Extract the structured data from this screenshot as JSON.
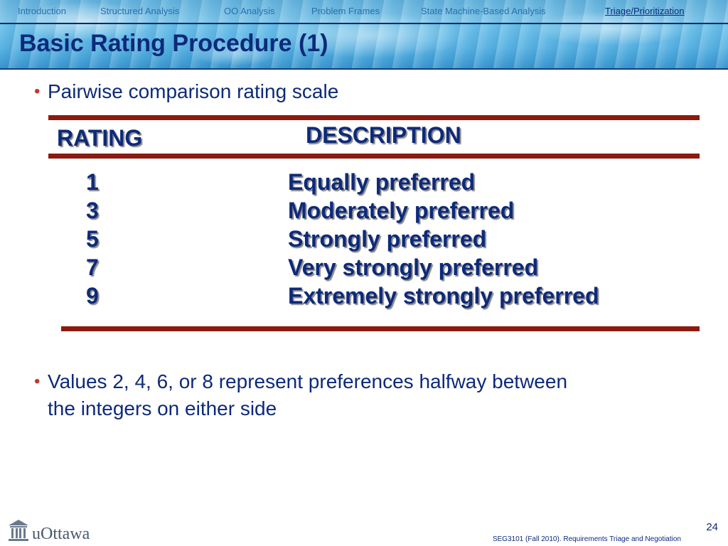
{
  "nav": {
    "items": [
      {
        "label": "Introduction",
        "active": false
      },
      {
        "label": "Structured Analysis",
        "active": false
      },
      {
        "label": "OO Analysis",
        "active": false
      },
      {
        "label": "Problem Frames",
        "active": false
      },
      {
        "label": "State Machine-Based Analysis",
        "active": false
      },
      {
        "label": "Triage/Prioritization",
        "active": true
      }
    ]
  },
  "slide": {
    "title": "Basic Rating Procedure (1)",
    "bullets": [
      {
        "lines": [
          "Pairwise comparison rating scale"
        ]
      },
      {
        "lines": [
          "Values 2, 4, 6, or 8 represent preferences halfway between",
          "the integers on either side"
        ]
      }
    ],
    "bullet_symbol": "•"
  },
  "rating_table": {
    "headers": {
      "rating": "RATING",
      "description": "DESCRIPTION"
    },
    "rows": [
      {
        "rating": "1",
        "description": "Equally preferred"
      },
      {
        "rating": "3",
        "description": "Moderately preferred"
      },
      {
        "rating": "5",
        "description": "Strongly preferred"
      },
      {
        "rating": "7",
        "description": "Very strongly preferred"
      },
      {
        "rating": "9",
        "description": "Extremely strongly preferred"
      }
    ]
  },
  "footer": {
    "logo_text": "uOttawa",
    "course": "SEG3101 (Fall 2010).   Requirements Triage and Negotiation",
    "page_number": "24"
  },
  "colors": {
    "title": "#0d2a7a",
    "bullet_dot": "#c0392b",
    "table_rule": "#8b1a10",
    "nav_inactive": "#2a6fb0"
  }
}
